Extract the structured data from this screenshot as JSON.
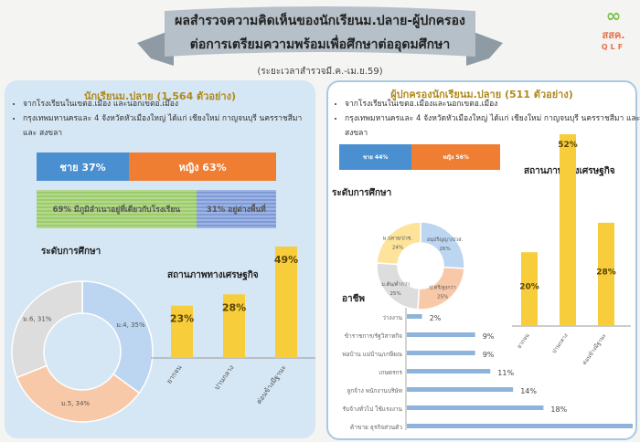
{
  "header": {
    "title_line1": "ผลสำรวจความคิดเห็นของนักเรียนม.ปลาย-ผู้ปกครอง",
    "title_line2": "ต่อการเตรียมความพร้อมเพื่อศึกษาต่ออุดมศึกษา",
    "subtitle": "(ระยะเวลาสำรวจมี.ค.-เม.ย.59)",
    "logo_text": "สสค.",
    "logo_sub": "QLF"
  },
  "students": {
    "title": "นักเรียนม.ปลาย (1,564 ตัวอย่าง)",
    "bullets": [
      "จากโรงเรียนในเขตอ.เมือง และนอกเขตอ.เมือง",
      "กรุงเทพมหานครและ 4 จังหวัดหัวเมืองใหญ่ ได้แก่ เชียงใหม่ กาญจนบุรี นครราชสีมา และ สงขลา"
    ],
    "gender": [
      {
        "label": "ชาย 37%",
        "value": 37,
        "color": "#4a90d0"
      },
      {
        "label": "หญิง 63%",
        "value": 63,
        "color": "#ef7d32"
      }
    ],
    "domicile": [
      {
        "label": "69% มีภูมิลำเนาอยู่ที่เดียวกับโรงเรียน",
        "value": 69,
        "color": "#9ccb6a"
      },
      {
        "label": "31% อยู่ต่างพื้นที่",
        "value": 31,
        "color": "#7e9bd8"
      }
    ]
  },
  "parents": {
    "title": "ผู้ปกครองนักเรียนม.ปลาย (511 ตัวอย่าง)",
    "bullets": [
      "จากโรงเรียนในเขตอ.เมืองและนอกเขตอ.เมือง",
      "กรุงเทพมหานครและ 4 จังหวัดหัวเมืองใหญ่ ได้แก่ เชียงใหม่ กาญจนบุรี นครราชสีมา และ สงขลา"
    ],
    "gender": [
      {
        "label": "ชาย 44%",
        "value": 44,
        "color": "#4a90d0"
      },
      {
        "label": "หญิง 56%",
        "value": 56,
        "color": "#ef7d32"
      }
    ]
  },
  "chart_data": [
    {
      "id": "student-education",
      "type": "pie",
      "title": "ระดับการศึกษา",
      "donut": true,
      "slices": [
        {
          "label": "ม.4, 35%",
          "value": 35,
          "color": "#bcd6f1"
        },
        {
          "label": "ม.5, 34%",
          "value": 34,
          "color": "#f8c9a8"
        },
        {
          "label": "ม.6, 31%",
          "value": 31,
          "color": "#dddddd"
        }
      ]
    },
    {
      "id": "student-economic",
      "type": "bar",
      "title": "สถานภาพทางเศรษฐกิจ",
      "categories": [
        "ยากจน",
        "ปานกลาง",
        "ค่อนข้างมีฐานะ"
      ],
      "values": [
        23,
        28,
        49
      ],
      "labels": [
        "23%",
        "28%",
        "49%"
      ],
      "color": "#f7cd3c",
      "ylim": [
        0,
        49
      ]
    },
    {
      "id": "parent-education",
      "type": "pie",
      "title": "ระดับการศึกษา",
      "donut": true,
      "slices": [
        {
          "label": "อนุปริญญา/ปวส.",
          "pct": "26%",
          "value": 26,
          "color": "#bcd6f1"
        },
        {
          "label": "ป.ตรี/สูงกว่า",
          "pct": "25%",
          "value": 25,
          "color": "#f8c9a8"
        },
        {
          "label": "ม.ต้น/ต่ำกว่า",
          "pct": "25%",
          "value": 25,
          "color": "#dddddd"
        },
        {
          "label": "ม.ปลาย/ปวช.",
          "pct": "24%",
          "value": 24,
          "color": "#fde49a"
        }
      ]
    },
    {
      "id": "parent-economic",
      "type": "bar",
      "title": "สถานภาพทางเศรษฐกิจ",
      "categories": [
        "ยากจน",
        "ปานกลาง",
        "ค่อนข้างมีฐานะ"
      ],
      "values": [
        20,
        52,
        28
      ],
      "labels": [
        "20%",
        "52%",
        "28%"
      ],
      "color": "#f7cd3c",
      "ylim": [
        0,
        52
      ]
    },
    {
      "id": "parent-occupation",
      "type": "bar",
      "orientation": "horizontal",
      "title": "อาชีพ",
      "categories": [
        "ว่างงาน",
        "ข้าราชการ/รัฐวิสาหกิจ",
        "พ่อบ้าน แม่บ้าน/เกษียณ",
        "เกษตรกร",
        "ลูกจ้าง พนักงานบริษัท",
        "รับจ้างทั่วไป ใช้แรงงาน",
        "ค้าขาย ธุรกิจส่วนตัว"
      ],
      "values": [
        2,
        9,
        9,
        11,
        14,
        18,
        37
      ],
      "labels": [
        "2%",
        "9%",
        "9%",
        "11%",
        "14%",
        "18%",
        "37%"
      ],
      "color": "#8fb4dc"
    }
  ]
}
